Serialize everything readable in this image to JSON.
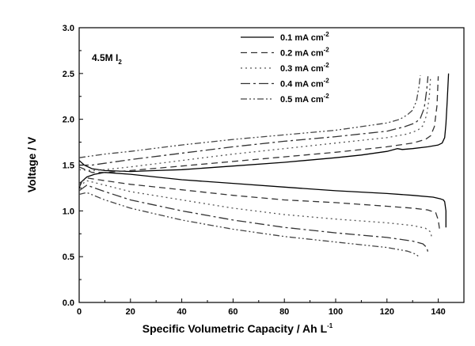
{
  "chart_data": {
    "type": "line",
    "xlabel": "Specific Volumetric Capacity / Ah L",
    "xlabel_sup": "-1",
    "ylabel": "Voltage / V",
    "xlim": [
      0,
      150
    ],
    "ylim": [
      0.0,
      3.0
    ],
    "xticks": [
      0,
      20,
      40,
      60,
      80,
      100,
      120,
      140
    ],
    "yticks": [
      0.0,
      0.5,
      1.0,
      1.5,
      2.0,
      2.5,
      3.0
    ],
    "xtick_labels": [
      "0",
      "20",
      "40",
      "60",
      "80",
      "100",
      "120",
      "140"
    ],
    "ytick_labels": [
      "0.0",
      "0.5",
      "1.0",
      "1.5",
      "2.0",
      "2.5",
      "3.0"
    ],
    "grid": false,
    "legend_position": "top-right",
    "annotation": {
      "main": "4.5M I",
      "sub": "2"
    },
    "series": [
      {
        "name": "0.1 mA cm",
        "name_sup": "-2",
        "dash": "solid",
        "color": "#000000",
        "charge": {
          "x": [
            0,
            2,
            5,
            10,
            20,
            30,
            40,
            60,
            80,
            100,
            110,
            120,
            124,
            126,
            130,
            136,
            140,
            141.5,
            142.5,
            143,
            143.5,
            144
          ],
          "y": [
            1.55,
            1.5,
            1.46,
            1.44,
            1.43,
            1.44,
            1.45,
            1.49,
            1.53,
            1.58,
            1.61,
            1.65,
            1.68,
            1.67,
            1.68,
            1.7,
            1.72,
            1.74,
            1.8,
            1.95,
            2.2,
            2.5
          ]
        },
        "discharge": {
          "x": [
            0,
            1,
            3,
            6,
            10,
            20,
            40,
            60,
            80,
            100,
            120,
            130,
            138,
            141,
            142,
            142.5,
            143,
            143
          ],
          "y": [
            1.25,
            1.32,
            1.37,
            1.4,
            1.42,
            1.4,
            1.34,
            1.3,
            1.26,
            1.22,
            1.19,
            1.17,
            1.15,
            1.13,
            1.12,
            1.1,
            1.0,
            0.82
          ]
        }
      },
      {
        "name": "0.2 mA cm",
        "name_sup": "-2",
        "dash": "8,5",
        "color": "#333333",
        "charge": {
          "x": [
            0,
            5,
            10,
            20,
            40,
            60,
            80,
            100,
            120,
            130,
            135,
            137,
            138.5,
            139.5,
            140
          ],
          "y": [
            1.48,
            1.42,
            1.42,
            1.44,
            1.49,
            1.54,
            1.59,
            1.64,
            1.7,
            1.74,
            1.78,
            1.82,
            1.92,
            2.15,
            2.47
          ]
        },
        "discharge": {
          "x": [
            0,
            3,
            10,
            20,
            40,
            60,
            80,
            100,
            120,
            130,
            136,
            139,
            140,
            140.5
          ],
          "y": [
            1.3,
            1.36,
            1.33,
            1.29,
            1.23,
            1.17,
            1.12,
            1.09,
            1.05,
            1.03,
            1.01,
            0.98,
            0.9,
            0.8
          ]
        }
      },
      {
        "name": "0.3 mA cm",
        "name_sup": "-2",
        "dash": "2,4",
        "color": "#555555",
        "charge": {
          "x": [
            0,
            5,
            10,
            20,
            40,
            60,
            80,
            100,
            120,
            128,
            132,
            134,
            135.5,
            136.5,
            137
          ],
          "y": [
            1.45,
            1.44,
            1.45,
            1.48,
            1.55,
            1.62,
            1.68,
            1.74,
            1.8,
            1.84,
            1.88,
            1.93,
            2.05,
            2.25,
            2.47
          ]
        },
        "discharge": {
          "x": [
            0,
            3,
            10,
            20,
            40,
            60,
            80,
            100,
            120,
            130,
            135,
            137,
            137.5
          ],
          "y": [
            1.27,
            1.33,
            1.28,
            1.21,
            1.12,
            1.03,
            0.96,
            0.91,
            0.87,
            0.84,
            0.81,
            0.77,
            0.7
          ]
        }
      },
      {
        "name": "0.4 mA cm",
        "name_sup": "-2",
        "dash": "12,4,3,4",
        "color": "#333333",
        "charge": {
          "x": [
            0,
            5,
            10,
            20,
            40,
            60,
            80,
            100,
            120,
            127,
            131,
            133,
            134.5,
            135.5,
            136
          ],
          "y": [
            1.5,
            1.5,
            1.52,
            1.56,
            1.63,
            1.7,
            1.76,
            1.81,
            1.87,
            1.92,
            1.96,
            2.01,
            2.12,
            2.32,
            2.47
          ]
        },
        "discharge": {
          "x": [
            0,
            3,
            10,
            20,
            40,
            60,
            80,
            100,
            120,
            130,
            134,
            135.5,
            136
          ],
          "y": [
            1.22,
            1.28,
            1.21,
            1.12,
            1.0,
            0.9,
            0.82,
            0.76,
            0.71,
            0.67,
            0.64,
            0.6,
            0.55
          ]
        }
      },
      {
        "name": "0.5 mA cm",
        "name_sup": "-2",
        "dash": "8,3,2,3,2,3",
        "color": "#444444",
        "charge": {
          "x": [
            0,
            5,
            10,
            20,
            40,
            60,
            80,
            100,
            120,
            125,
            128,
            130,
            131.5,
            132.5,
            133
          ],
          "y": [
            1.58,
            1.6,
            1.62,
            1.65,
            1.72,
            1.78,
            1.83,
            1.88,
            1.96,
            2.0,
            2.05,
            2.1,
            2.2,
            2.36,
            2.48
          ]
        },
        "discharge": {
          "x": [
            0,
            3,
            10,
            20,
            40,
            60,
            80,
            100,
            120,
            128,
            131,
            132.5
          ],
          "y": [
            1.18,
            1.2,
            1.12,
            1.03,
            0.9,
            0.8,
            0.72,
            0.66,
            0.6,
            0.56,
            0.53,
            0.5
          ]
        }
      }
    ]
  }
}
